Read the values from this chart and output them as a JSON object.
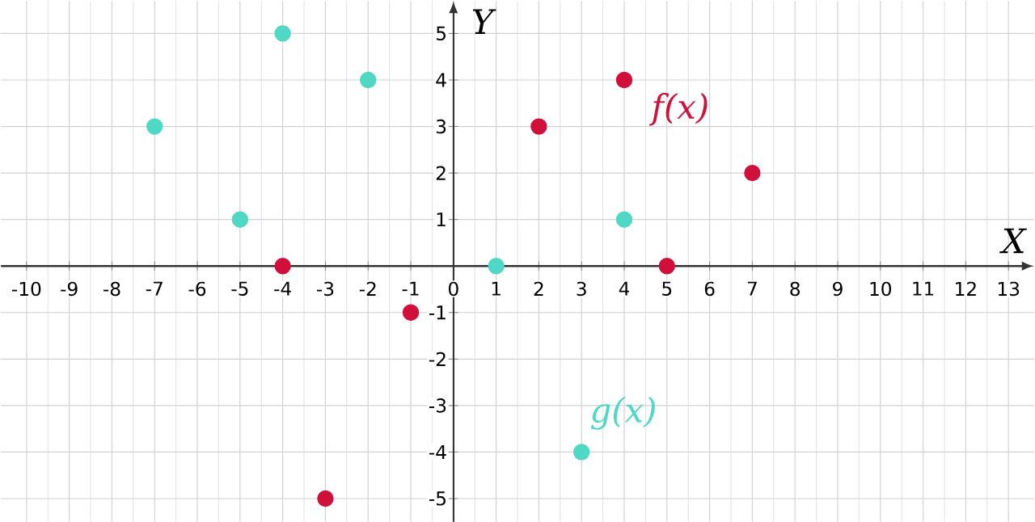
{
  "chart_data": {
    "type": "scatter",
    "xlabel": "X",
    "ylabel": "Y",
    "series": [
      {
        "name": "f(x)",
        "color": "#d0103a",
        "x": [
          -4,
          -3,
          -1,
          2,
          4,
          5,
          7
        ],
        "values": [
          0,
          -5,
          -1,
          3,
          4,
          0,
          2
        ]
      },
      {
        "name": "g(x)",
        "color": "#4fd8c4",
        "x": [
          -7,
          -5,
          -4,
          -2,
          1,
          3,
          4
        ],
        "values": [
          3,
          1,
          5,
          4,
          0,
          -4,
          1
        ]
      }
    ],
    "xlim": [
      -10.6,
      13.6
    ],
    "ylim": [
      -5.5,
      5.7
    ],
    "xticks": [
      -10,
      -9,
      -8,
      -7,
      -6,
      -5,
      -4,
      -3,
      -2,
      -1,
      0,
      1,
      2,
      3,
      4,
      5,
      6,
      7,
      8,
      9,
      10,
      11,
      12,
      13
    ],
    "yticks": [
      -5,
      -4,
      -3,
      -2,
      -1,
      1,
      2,
      3,
      4,
      5
    ],
    "grid": true,
    "marker": "circle"
  }
}
